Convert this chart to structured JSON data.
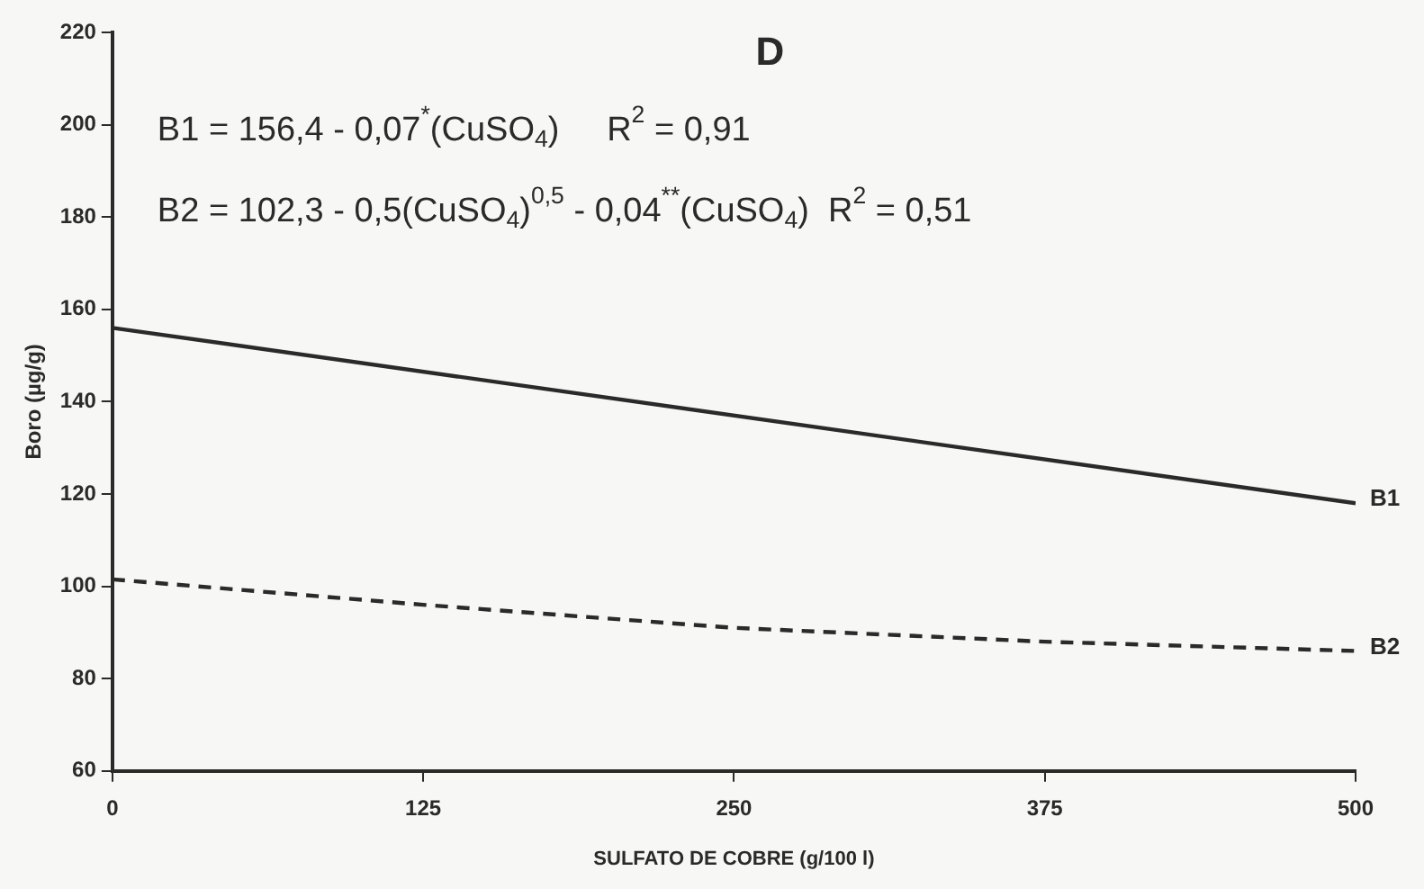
{
  "chart_data": {
    "type": "line",
    "title": "D",
    "xlabel": "SULFATO DE COBRE (g/100 l)",
    "ylabel": "Boro (µg/g)",
    "xlim": [
      0,
      500
    ],
    "xticks": [
      0,
      125,
      250,
      375,
      500
    ],
    "ylim": [
      60,
      220
    ],
    "yticks": [
      60,
      80,
      100,
      120,
      140,
      160,
      180,
      200,
      220
    ],
    "grid": false,
    "legend": false,
    "marker": "none",
    "series": [
      {
        "name": "B1",
        "color": "#2a2a2a",
        "line_style": "solid",
        "x": [
          0,
          500
        ],
        "values": [
          156,
          118
        ]
      },
      {
        "name": "B2",
        "color": "#2a2a2a",
        "line_style": "dashed",
        "x": [
          0,
          125,
          250,
          375,
          500
        ],
        "values": [
          101.5,
          96,
          91,
          88,
          86
        ]
      }
    ],
    "annotations": [
      "B1 = 156,4 - 0,07$^{*}$(CuSO$_{4}$)     R$^{2}$ = 0,91",
      "B2 = 102,3 - 0,5(CuSO$_{4}$)$^{0,5}$ - 0,04$^{**}$(CuSO$_{4}$)  R$^{2}$ = 0,51"
    ]
  }
}
